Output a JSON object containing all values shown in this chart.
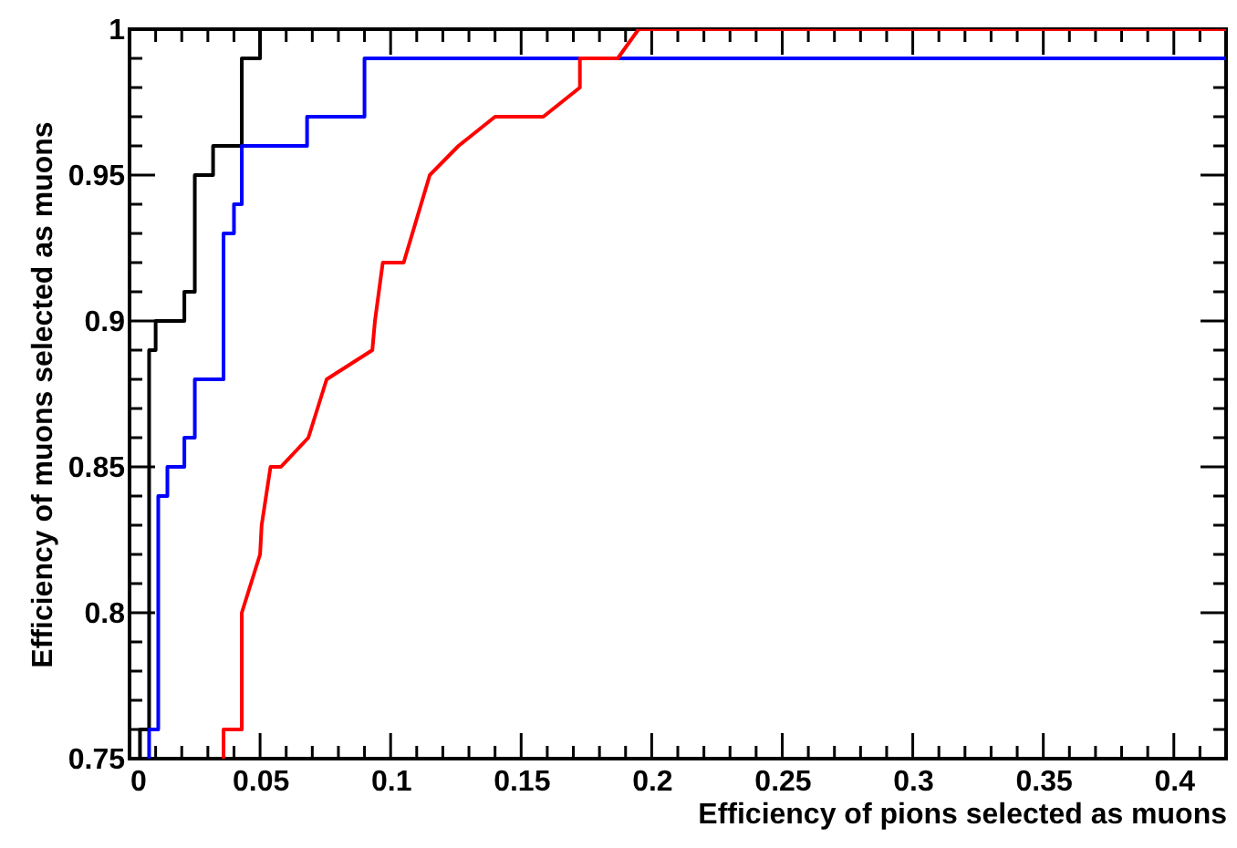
{
  "chart_data": {
    "type": "step",
    "xlabel": "Efficiency of pions selected as muons",
    "ylabel": "Efficiency of muons selected as muons",
    "xlim": [
      0,
      0.42
    ],
    "ylim": [
      0.75,
      1.0
    ],
    "xticks": [
      0,
      {
        "value": 0.01,
        "label": null
      },
      {
        "value": 0.02,
        "label": null
      },
      {
        "value": 0.03,
        "label": null
      },
      {
        "value": 0.04,
        "label": null
      },
      0.05,
      {
        "value": 0.06,
        "label": null
      },
      {
        "value": 0.07,
        "label": null
      },
      {
        "value": 0.08,
        "label": null
      },
      {
        "value": 0.09,
        "label": null
      },
      0.1,
      {
        "value": 0.11,
        "label": null
      },
      {
        "value": 0.12,
        "label": null
      },
      {
        "value": 0.13,
        "label": null
      },
      {
        "value": 0.14,
        "label": null
      },
      0.15,
      {
        "value": 0.16,
        "label": null
      },
      {
        "value": 0.17,
        "label": null
      },
      {
        "value": 0.18,
        "label": null
      },
      {
        "value": 0.19,
        "label": null
      },
      0.2,
      {
        "value": 0.21,
        "label": null
      },
      {
        "value": 0.22,
        "label": null
      },
      {
        "value": 0.23,
        "label": null
      },
      {
        "value": 0.24,
        "label": null
      },
      0.25,
      {
        "value": 0.26,
        "label": null
      },
      {
        "value": 0.27,
        "label": null
      },
      {
        "value": 0.28,
        "label": null
      },
      {
        "value": 0.29,
        "label": null
      },
      0.3,
      {
        "value": 0.31,
        "label": null
      },
      {
        "value": 0.32,
        "label": null
      },
      {
        "value": 0.33,
        "label": null
      },
      {
        "value": 0.34,
        "label": null
      },
      0.35,
      {
        "value": 0.36,
        "label": null
      },
      {
        "value": 0.37,
        "label": null
      },
      {
        "value": 0.38,
        "label": null
      },
      {
        "value": 0.39,
        "label": null
      },
      0.4,
      {
        "value": 0.41,
        "label": null
      }
    ],
    "yticks": [
      0.75,
      {
        "value": 0.76,
        "label": null
      },
      {
        "value": 0.77,
        "label": null
      },
      {
        "value": 0.78,
        "label": null
      },
      {
        "value": 0.79,
        "label": null
      },
      0.8,
      {
        "value": 0.81,
        "label": null
      },
      {
        "value": 0.82,
        "label": null
      },
      {
        "value": 0.83,
        "label": null
      },
      {
        "value": 0.84,
        "label": null
      },
      0.85,
      {
        "value": 0.86,
        "label": null
      },
      {
        "value": 0.87,
        "label": null
      },
      {
        "value": 0.88,
        "label": null
      },
      {
        "value": 0.89,
        "label": null
      },
      0.9,
      {
        "value": 0.91,
        "label": null
      },
      {
        "value": 0.92,
        "label": null
      },
      {
        "value": 0.93,
        "label": null
      },
      {
        "value": 0.94,
        "label": null
      },
      0.95,
      {
        "value": 0.96,
        "label": null
      },
      {
        "value": 0.97,
        "label": null
      },
      {
        "value": 0.98,
        "label": null
      },
      {
        "value": 0.99,
        "label": null
      },
      1
    ],
    "grid": false,
    "marker": "none",
    "line_style": "solid",
    "series": [
      {
        "color": "#000000",
        "x": [
          0.004,
          0.004,
          0.0075,
          0.01,
          0.021,
          0.025,
          0.032,
          0.043,
          0.05,
          0.42
        ],
        "values": [
          0.75,
          0.76,
          0.89,
          0.9,
          0.91,
          0.95,
          0.96,
          0.99,
          1.0,
          1.0
        ]
      },
      {
        "color": "#0000ff",
        "x": [
          0.0075,
          0.0075,
          0.011,
          0.0145,
          0.021,
          0.025,
          0.036,
          0.04,
          0.043,
          0.068,
          0.09,
          0.42
        ],
        "values": [
          0.75,
          0.76,
          0.84,
          0.85,
          0.86,
          0.88,
          0.93,
          0.94,
          0.96,
          0.97,
          0.99,
          0.99
        ]
      },
      {
        "type": "line",
        "color": "#ff0000",
        "x": [
          0.036,
          0.036,
          0.043,
          0.043,
          0.05,
          0.0506,
          0.054,
          0.058,
          0.0685,
          0.0755,
          0.093,
          0.094,
          0.097,
          0.105,
          0.115,
          0.126,
          0.14,
          0.1585,
          0.1725,
          0.1725,
          0.187,
          0.195,
          0.42
        ],
        "values": [
          0.75,
          0.76,
          0.76,
          0.8,
          0.82,
          0.83,
          0.85,
          0.85,
          0.86,
          0.88,
          0.89,
          0.9,
          0.92,
          0.92,
          0.95,
          0.96,
          0.97,
          0.97,
          0.98,
          0.99,
          0.99,
          1.0,
          1.0
        ]
      }
    ]
  }
}
